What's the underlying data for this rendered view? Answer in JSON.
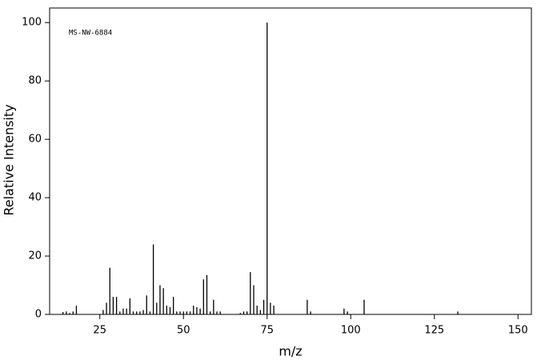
{
  "chart_data": {
    "type": "stem",
    "annotation": "MS-NW-6884",
    "xlabel": "m/z",
    "ylabel": "Relative Intensity",
    "x": [
      14,
      15,
      16,
      17,
      18,
      26,
      27,
      28,
      29,
      30,
      31,
      32,
      33,
      34,
      35,
      36,
      37,
      38,
      39,
      40,
      41,
      42,
      43,
      44,
      45,
      46,
      47,
      48,
      49,
      50,
      51,
      52,
      53,
      54,
      55,
      56,
      57,
      58,
      59,
      60,
      61,
      67,
      68,
      69,
      70,
      71,
      72,
      73,
      74,
      75,
      76,
      77,
      87,
      88,
      98,
      99,
      104,
      132
    ],
    "values": [
      0.8,
      1,
      0.5,
      1,
      3,
      1.5,
      4,
      16,
      6,
      6,
      1,
      2,
      2,
      5.5,
      1,
      1,
      1,
      1.5,
      6.5,
      1,
      24,
      4,
      10,
      9,
      3,
      2.5,
      6,
      1,
      1,
      1,
      1,
      1,
      3,
      2.5,
      2,
      12,
      13.5,
      1,
      5,
      1,
      1,
      0.5,
      1,
      1,
      14.5,
      10,
      3,
      1.5,
      5,
      100,
      4,
      3,
      5,
      1,
      2,
      1,
      5,
      1
    ],
    "color": "#000000",
    "xlim": [
      10,
      154
    ],
    "ylim": [
      0,
      105
    ],
    "xticks": [
      25,
      50,
      75,
      100,
      125,
      150
    ],
    "yticks": [
      0,
      20,
      40,
      60,
      80,
      100
    ]
  }
}
